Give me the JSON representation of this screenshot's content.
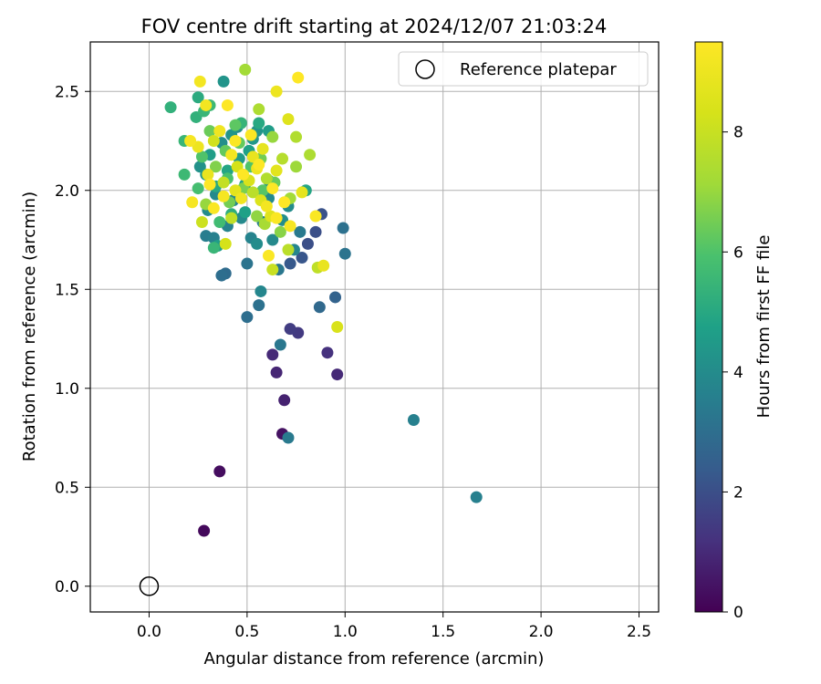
{
  "chart_data": {
    "type": "scatter",
    "title": "FOV centre drift starting at 2024/12/07 21:03:24",
    "xlabel": "Angular distance from reference (arcmin)",
    "ylabel": "Rotation from reference (arcmin)",
    "xlim": [
      -0.3,
      2.6
    ],
    "ylim": [
      -0.13,
      2.75
    ],
    "xticks": [
      "0.0",
      "0.5",
      "1.0",
      "1.5",
      "2.0",
      "2.5"
    ],
    "yticks": [
      "0.0",
      "0.5",
      "1.0",
      "1.5",
      "2.0",
      "2.5"
    ],
    "grid": true,
    "legend": {
      "placement": "top-right",
      "label": "Reference platepar"
    },
    "reference_point": {
      "x": 0.0,
      "y": 0.0
    },
    "colorbar": {
      "label": "Hours from first FF file",
      "range": [
        0,
        9.5
      ],
      "ticks": [
        "0",
        "2",
        "4",
        "6",
        "8"
      ],
      "colormap": "viridis"
    },
    "series": [
      {
        "points": [
          [
            0.28,
            0.28,
            0.2
          ],
          [
            0.36,
            0.58,
            0.3
          ],
          [
            0.68,
            0.77,
            0.4
          ],
          [
            0.69,
            0.94,
            0.8
          ],
          [
            0.65,
            1.08,
            0.9
          ],
          [
            0.63,
            1.17,
            1.0
          ],
          [
            0.96,
            1.07,
            1.0
          ],
          [
            0.91,
            1.18,
            1.2
          ],
          [
            0.76,
            1.28,
            1.4
          ],
          [
            0.72,
            1.3,
            1.5
          ],
          [
            0.81,
            1.73,
            2.0
          ],
          [
            0.85,
            1.79,
            2.0
          ],
          [
            0.88,
            1.88,
            2.1
          ],
          [
            0.78,
            1.66,
            2.2
          ],
          [
            0.72,
            1.63,
            2.3
          ],
          [
            0.95,
            1.46,
            2.6
          ],
          [
            0.87,
            1.41,
            2.8
          ],
          [
            0.5,
            1.36,
            3.0
          ],
          [
            0.56,
            1.42,
            3.1
          ],
          [
            0.99,
            1.81,
            3.1
          ],
          [
            1.0,
            1.68,
            3.2
          ],
          [
            0.67,
            1.22,
            3.3
          ],
          [
            0.71,
            0.75,
            3.4
          ],
          [
            1.35,
            0.84,
            3.6
          ],
          [
            1.67,
            0.45,
            3.6
          ],
          [
            0.39,
            1.58,
            2.9
          ],
          [
            0.37,
            1.57,
            3.0
          ],
          [
            0.5,
            1.63,
            3.2
          ],
          [
            0.66,
            1.6,
            3.3
          ],
          [
            0.77,
            1.79,
            3.4
          ],
          [
            0.57,
            1.49,
            3.8
          ],
          [
            0.29,
            1.77,
            3.5
          ],
          [
            0.33,
            1.76,
            3.6
          ],
          [
            0.4,
            1.82,
            3.7
          ],
          [
            0.47,
            1.86,
            3.9
          ],
          [
            0.52,
            1.76,
            3.7
          ],
          [
            0.58,
            1.84,
            3.5
          ],
          [
            0.63,
            1.75,
            3.9
          ],
          [
            0.74,
            1.7,
            3.8
          ],
          [
            0.43,
            1.95,
            3.8
          ],
          [
            0.3,
            1.9,
            4.0
          ],
          [
            0.34,
            1.98,
            3.9
          ],
          [
            0.55,
            1.73,
            4.0
          ],
          [
            0.61,
            1.96,
            3.9
          ],
          [
            0.68,
            1.85,
            4.1
          ],
          [
            0.71,
            1.92,
            4.0
          ],
          [
            0.26,
            2.12,
            4.2
          ],
          [
            0.29,
            2.08,
            4.4
          ],
          [
            0.31,
            2.18,
            4.6
          ],
          [
            0.37,
            2.24,
            4.1
          ],
          [
            0.42,
            2.28,
            4.3
          ],
          [
            0.46,
            2.16,
            4.5
          ],
          [
            0.51,
            2.2,
            4.7
          ],
          [
            0.55,
            2.3,
            4.3
          ],
          [
            0.61,
            2.05,
            4.2
          ],
          [
            0.49,
            2.03,
            4.8
          ],
          [
            0.4,
            2.1,
            4.9
          ],
          [
            0.34,
            2.02,
            5.0
          ],
          [
            0.45,
            2.32,
            4.0
          ],
          [
            0.53,
            2.26,
            4.4
          ],
          [
            0.61,
            2.3,
            4.6
          ],
          [
            0.38,
            2.55,
            4.3
          ],
          [
            0.35,
            1.72,
            4.6
          ],
          [
            0.49,
            1.89,
            4.7
          ],
          [
            0.8,
            2.0,
            4.9
          ],
          [
            0.42,
            1.88,
            5.2
          ],
          [
            0.56,
            2.34,
            5.0
          ],
          [
            0.25,
            2.47,
            5.1
          ],
          [
            0.47,
            2.34,
            5.4
          ],
          [
            0.24,
            2.37,
            5.3
          ],
          [
            0.11,
            2.42,
            5.3
          ],
          [
            0.18,
            2.25,
            5.5
          ],
          [
            0.28,
            2.4,
            5.5
          ],
          [
            0.31,
            2.43,
            5.6
          ],
          [
            0.18,
            2.08,
            5.6
          ],
          [
            0.25,
            2.01,
            5.8
          ],
          [
            0.36,
            1.84,
            5.7
          ],
          [
            0.33,
            1.71,
            5.5
          ],
          [
            0.4,
            2.06,
            5.9
          ],
          [
            0.52,
            2.12,
            6.0
          ],
          [
            0.58,
            2.0,
            6.1
          ],
          [
            0.44,
            2.33,
            6.2
          ],
          [
            0.39,
            2.2,
            6.3
          ],
          [
            0.27,
            2.17,
            6.0
          ],
          [
            0.31,
            2.3,
            6.4
          ],
          [
            0.46,
            2.24,
            6.3
          ],
          [
            0.57,
            2.16,
            6.5
          ],
          [
            0.64,
            2.04,
            6.4
          ],
          [
            0.48,
            2.01,
            6.6
          ],
          [
            0.34,
            2.12,
            6.7
          ],
          [
            0.41,
            1.94,
            6.5
          ],
          [
            0.67,
            1.79,
            6.8
          ],
          [
            0.55,
            1.87,
            6.9
          ],
          [
            0.29,
            1.93,
            7.0
          ],
          [
            0.63,
            2.27,
            7.0
          ],
          [
            0.75,
            2.12,
            7.1
          ],
          [
            0.72,
            1.96,
            7.2
          ],
          [
            0.59,
            1.83,
            7.3
          ],
          [
            0.49,
            2.61,
            7.2
          ],
          [
            0.56,
            2.41,
            7.4
          ],
          [
            0.82,
            2.18,
            7.4
          ],
          [
            0.75,
            2.27,
            7.5
          ],
          [
            0.68,
            2.16,
            7.6
          ],
          [
            0.6,
            2.06,
            7.5
          ],
          [
            0.53,
            1.99,
            7.7
          ],
          [
            0.42,
            1.86,
            7.8
          ],
          [
            0.38,
            2.04,
            7.9
          ],
          [
            0.86,
            1.61,
            7.8
          ],
          [
            0.71,
            1.7,
            7.7
          ],
          [
            0.63,
            1.6,
            8.0
          ],
          [
            0.27,
            1.84,
            8.1
          ],
          [
            0.33,
            2.25,
            8.2
          ],
          [
            0.45,
            2.12,
            8.3
          ],
          [
            0.51,
            2.05,
            8.4
          ],
          [
            0.57,
            1.95,
            8.5
          ],
          [
            0.62,
            1.87,
            8.6
          ],
          [
            0.96,
            1.31,
            8.4
          ],
          [
            0.71,
            2.36,
            8.6
          ],
          [
            0.39,
            1.73,
            8.3
          ],
          [
            0.44,
            2.0,
            8.7
          ],
          [
            0.58,
            2.21,
            8.8
          ],
          [
            0.53,
            2.17,
            8.9
          ],
          [
            0.65,
            2.1,
            8.7
          ],
          [
            0.78,
            1.99,
            8.8
          ],
          [
            0.3,
            2.08,
            8.9
          ],
          [
            0.89,
            1.62,
            8.9
          ],
          [
            0.65,
            2.5,
            9.0
          ],
          [
            0.55,
            2.11,
            9.0
          ],
          [
            0.47,
            1.96,
            9.1
          ],
          [
            0.36,
            2.3,
            9.1
          ],
          [
            0.29,
            2.43,
            9.2
          ],
          [
            0.26,
            2.55,
            9.2
          ],
          [
            0.21,
            2.25,
            9.3
          ],
          [
            0.25,
            2.22,
            9.0
          ],
          [
            0.42,
            2.18,
            9.2
          ],
          [
            0.6,
            1.92,
            9.2
          ],
          [
            0.72,
            1.82,
            9.3
          ],
          [
            0.65,
            1.86,
            9.4
          ],
          [
            0.85,
            1.87,
            9.4
          ],
          [
            0.38,
            1.97,
            9.3
          ],
          [
            0.33,
            1.91,
            9.4
          ],
          [
            0.22,
            1.94,
            9.3
          ],
          [
            0.48,
            2.08,
            9.5
          ],
          [
            0.56,
            2.13,
            9.5
          ],
          [
            0.61,
            1.67,
            9.4
          ],
          [
            0.76,
            2.57,
            9.5
          ],
          [
            0.4,
            2.43,
            9.5
          ],
          [
            0.63,
            2.01,
            9.5
          ],
          [
            0.52,
            2.28,
            9.4
          ],
          [
            0.31,
            2.03,
            9.5
          ],
          [
            0.69,
            1.94,
            9.5
          ],
          [
            0.44,
            2.25,
            9.4
          ]
        ]
      }
    ]
  }
}
